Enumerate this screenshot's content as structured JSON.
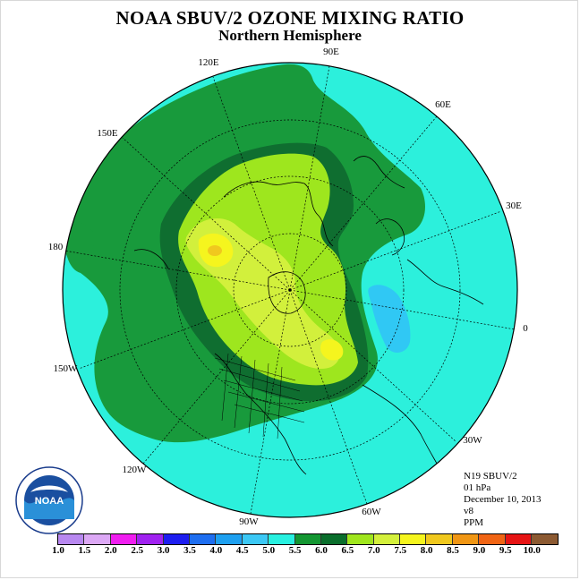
{
  "title": "NOAA SBUV/2 OZONE MIXING RATIO",
  "subtitle": "Northern Hemisphere",
  "longitude_labels": {
    "e90": "90E",
    "e120": "120E",
    "e60": "60E",
    "e150": "150E",
    "e30": "30E",
    "e180": "180",
    "e0": "0",
    "w150": "150W",
    "w30": "30W",
    "w120": "120W",
    "w60": "60W",
    "w90": "90W"
  },
  "info": {
    "instrument": "N19 SBUV/2",
    "level": "01 hPa",
    "date": "December 10, 2013",
    "version": "v8",
    "units": "PPM"
  },
  "legend": {
    "ticks": [
      "1.0",
      "1.5",
      "2.0",
      "2.5",
      "3.0",
      "3.5",
      "4.0",
      "4.5",
      "5.0",
      "5.5",
      "6.0",
      "6.5",
      "7.0",
      "7.5",
      "8.0",
      "8.5",
      "9.0",
      "9.5",
      "10.0"
    ],
    "colors": [
      "#b07ee8",
      "#d7a6f2",
      "#ee14ee",
      "#9b1cf0",
      "#1414ee",
      "#1e64f0",
      "#1e9bf0",
      "#30c8f4",
      "#2cf0dc",
      "#189a3c",
      "#0f6e30",
      "#9ee61e",
      "#d2f03c",
      "#f5f51e",
      "#f0c81e",
      "#f09614",
      "#f06414",
      "#e61414",
      "#8c5a32"
    ],
    "swatch_colors": [
      "#b888f0",
      "#dca8f5",
      "#f01ef0",
      "#a022f0",
      "#1e1ef0",
      "#1e6ef0",
      "#1ea0f0",
      "#3cc8f5",
      "#28f0e0",
      "#149632",
      "#0a6e2c",
      "#a0e61e",
      "#d4f03c",
      "#f5f51e",
      "#f0c81e",
      "#f09614",
      "#f06414",
      "#e61414",
      "#8c5a32"
    ]
  },
  "map_colors": {
    "cyan": "#2cf0dc",
    "light_blue": "#30c8f4",
    "green": "#189a3c",
    "dark_green": "#0f6e30",
    "lime": "#9ee61e",
    "yellow_green": "#d2f03c",
    "yellow": "#f5f51e",
    "orange": "#f0c81e"
  },
  "logo_text": "NOAA"
}
